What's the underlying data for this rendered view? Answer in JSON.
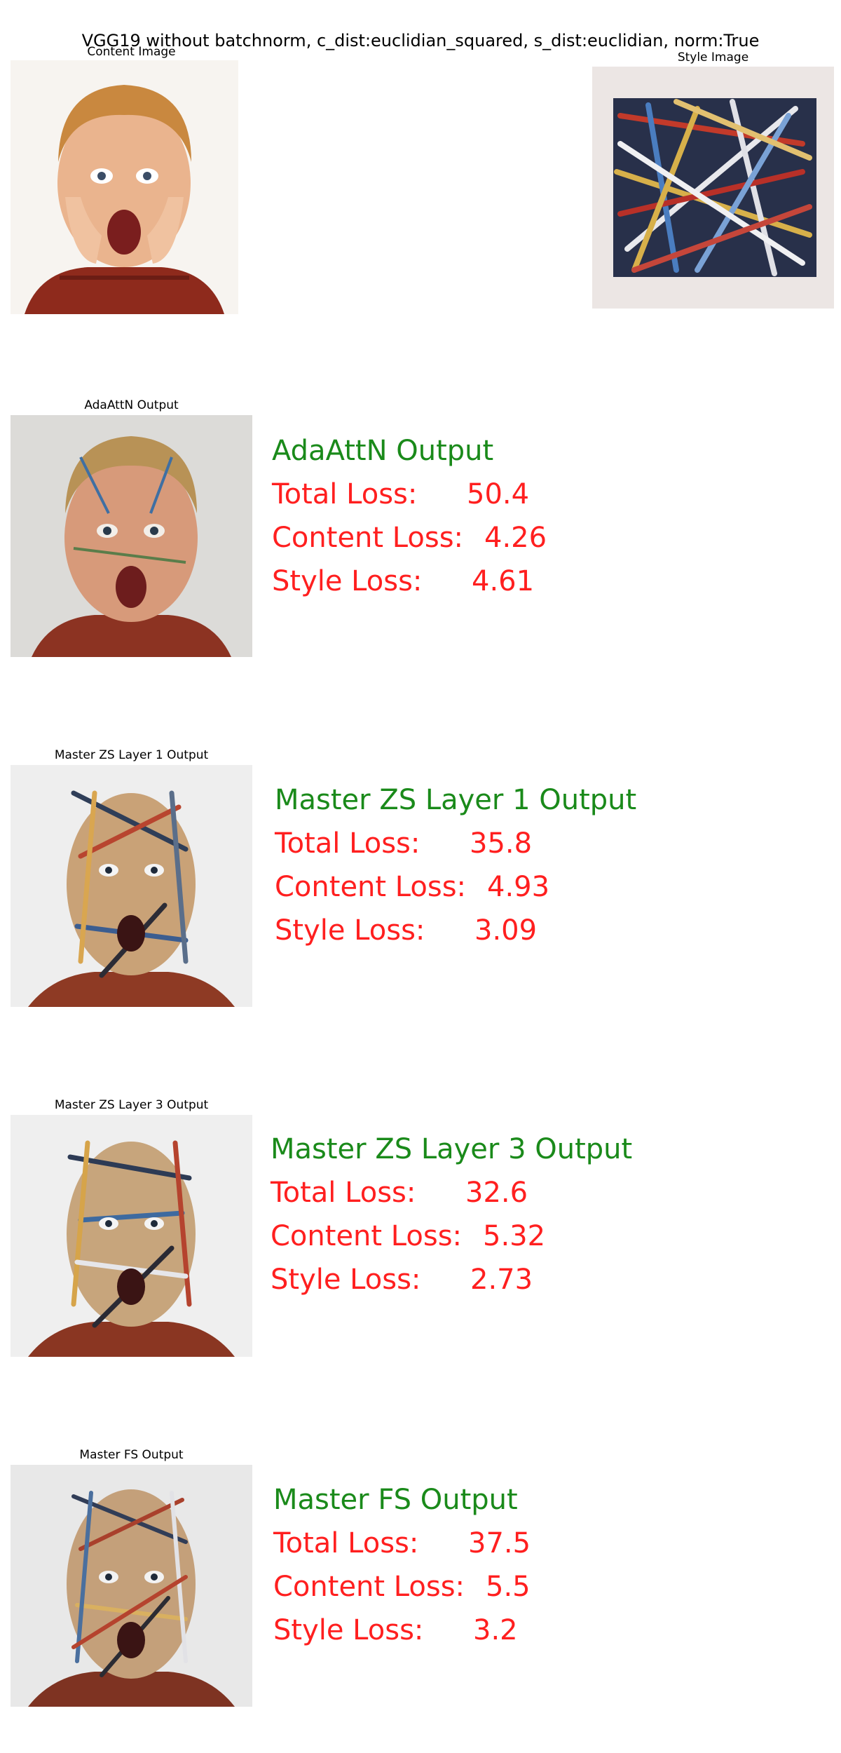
{
  "figure": {
    "suptitle": "VGG19 without batchnorm, c_dist:euclidian_squared, s_dist:euclidian, norm:True"
  },
  "content_panel": {
    "caption": "Content Image"
  },
  "style_panel": {
    "caption": "Style Image"
  },
  "outputs": [
    {
      "caption": "AdaAttN Output",
      "heading": "AdaAttN Output",
      "total_label": "Total Loss:",
      "total_value": "50.4",
      "content_label": "Content Loss:",
      "content_value": "4.26",
      "style_label": "Style Loss:",
      "style_value": "4.61"
    },
    {
      "caption": "Master ZS Layer 1 Output",
      "heading": "Master ZS Layer 1 Output",
      "total_label": "Total Loss:",
      "total_value": "35.8",
      "content_label": "Content Loss:",
      "content_value": "4.93",
      "style_label": "Style Loss:",
      "style_value": "3.09"
    },
    {
      "caption": "Master ZS Layer 3 Output",
      "heading": "Master ZS Layer 3 Output",
      "total_label": "Total Loss:",
      "total_value": "32.6",
      "content_label": "Content Loss:",
      "content_value": "5.32",
      "style_label": "Style Loss:",
      "style_value": "2.73"
    },
    {
      "caption": "Master FS Output",
      "heading": "Master FS Output",
      "total_label": "Total Loss:",
      "total_value": "37.5",
      "content_label": "Content Loss:",
      "content_value": "5.5",
      "style_label": "Style Loss:",
      "style_value": "3.2"
    }
  ]
}
